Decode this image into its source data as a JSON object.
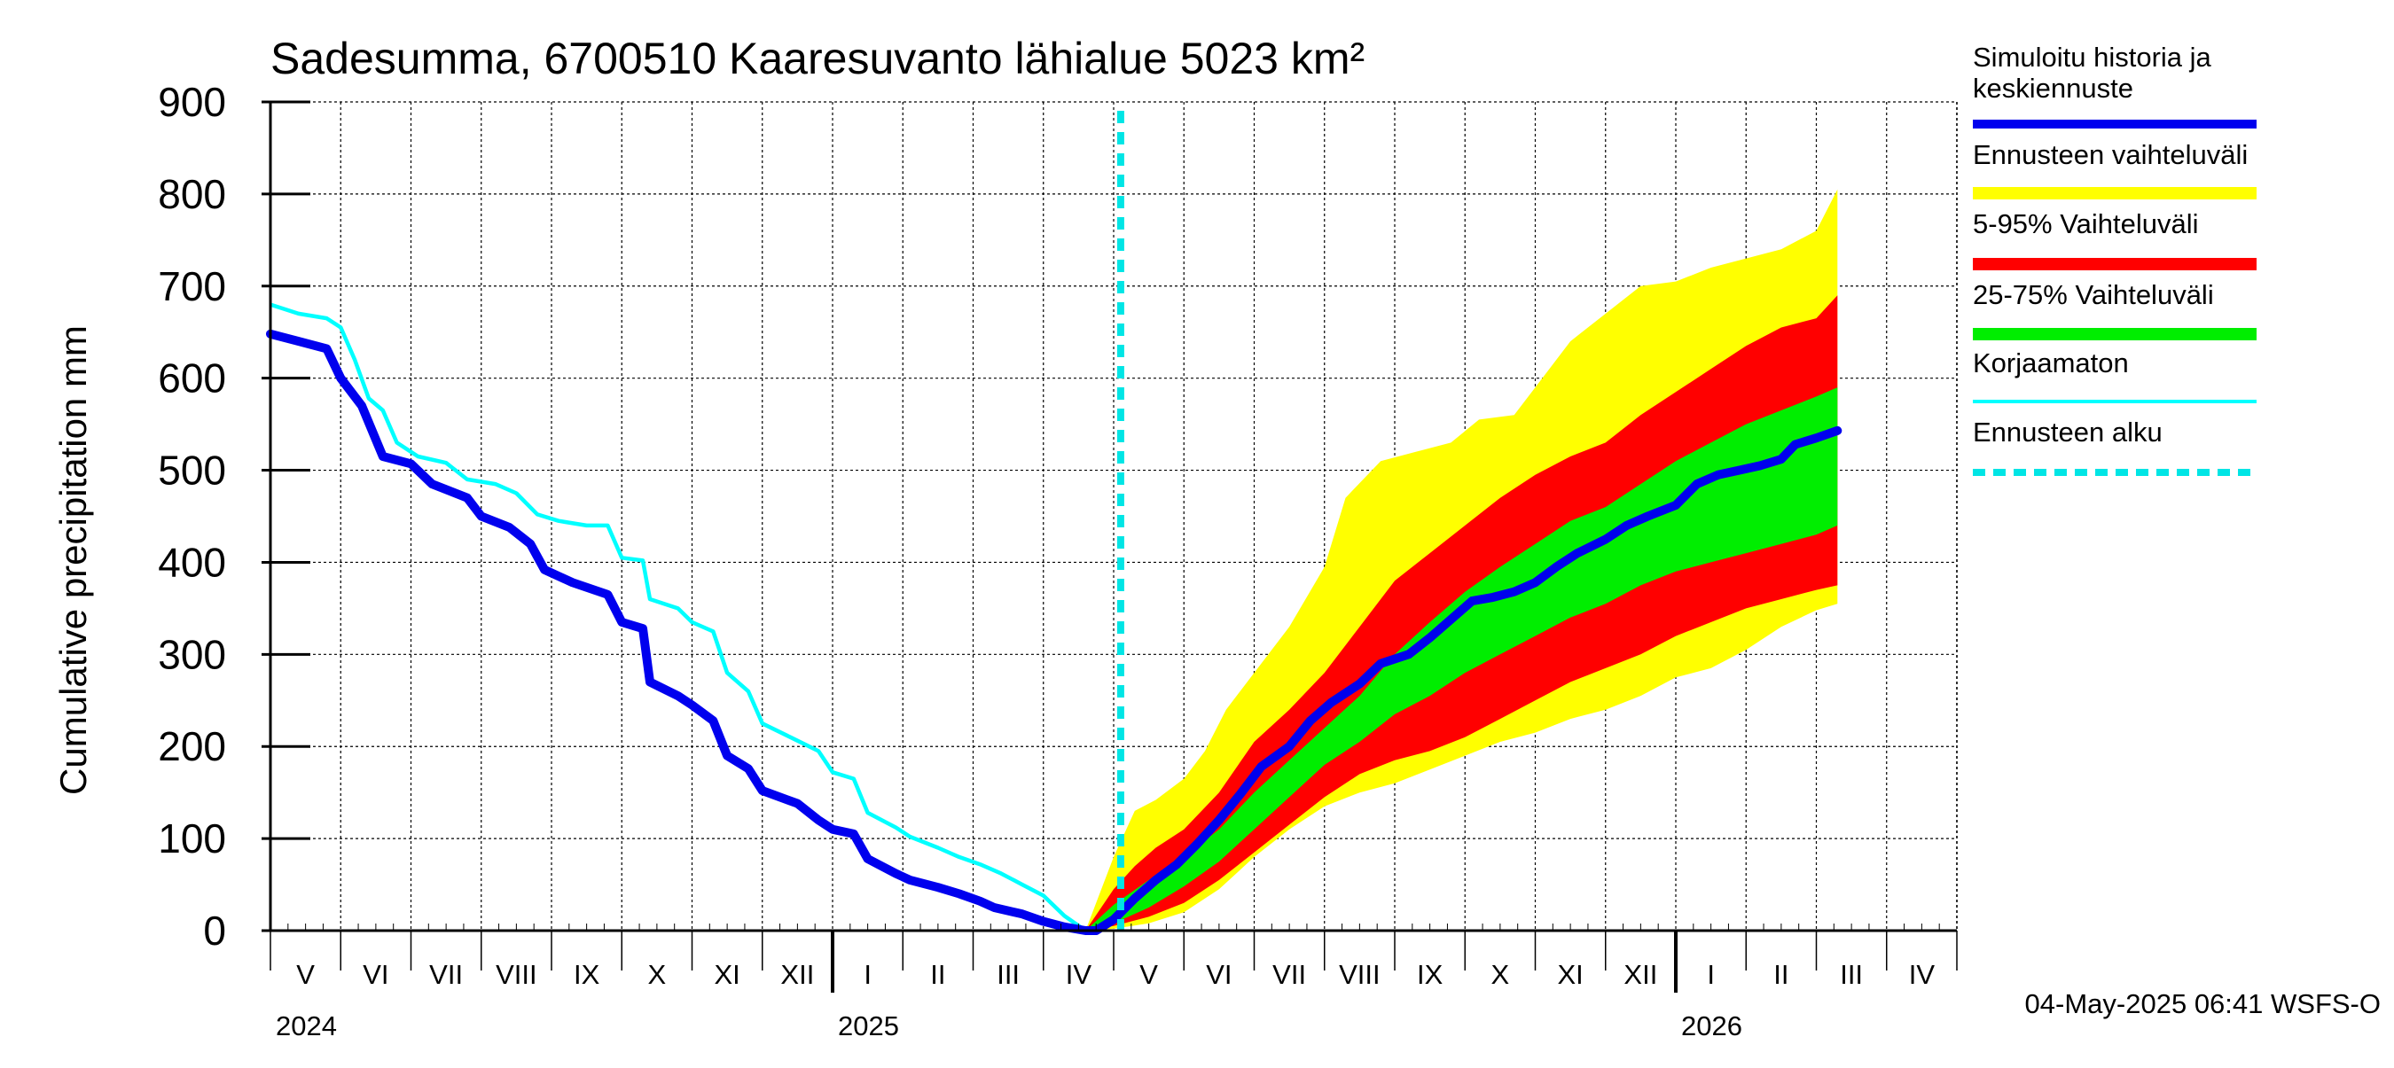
{
  "chart_data": {
    "type": "area",
    "title": "Sadesumma, 6700510 Kaaresuvanto lähialue 5023 km²",
    "ylabel": "Cumulative precipitation   mm",
    "xlabel": "",
    "ylim": [
      0,
      900
    ],
    "yticks": [
      "0",
      "100",
      "200",
      "300",
      "400",
      "500",
      "600",
      "700",
      "800",
      "900"
    ],
    "month_labels": [
      "V",
      "VI",
      "VII",
      "VIII",
      "IX",
      "X",
      "XI",
      "XII",
      "I",
      "II",
      "III",
      "IV",
      "V",
      "VI",
      "VII",
      "VIII",
      "IX",
      "X",
      "XI",
      "XII",
      "I",
      "II",
      "III",
      "IV"
    ],
    "year_labels": [
      "2024",
      "2025",
      "2026"
    ],
    "forecast_start": "2025-05-04",
    "footer": "04-May-2025 06:41 WSFS-O",
    "legend": [
      {
        "label": "Simuloitu historia ja keskiennuste",
        "line1": "Simuloitu historia ja",
        "line2": "keskiennuste",
        "color": "#0000ee",
        "style": "thick"
      },
      {
        "label": "Ennusteen vaihteluväli",
        "color": "#ffff00",
        "style": "band"
      },
      {
        "label": "5-95% Vaihteluväli",
        "color": "#ff0000",
        "style": "band"
      },
      {
        "label": "25-75% Vaihteluväli",
        "color": "#00ee00",
        "style": "band"
      },
      {
        "label": "Korjaamaton",
        "color": "#00ffff",
        "style": "thin"
      },
      {
        "label": "Ennusteen alku",
        "color": "#00e5e5",
        "style": "dashed"
      }
    ],
    "series": [
      {
        "name": "Simuloitu historia ja keskiennuste",
        "points": [
          [
            0,
            648
          ],
          [
            0.4,
            640
          ],
          [
            0.8,
            632
          ],
          [
            1.0,
            600
          ],
          [
            1.3,
            570
          ],
          [
            1.6,
            515
          ],
          [
            2.0,
            507
          ],
          [
            2.3,
            485
          ],
          [
            2.8,
            470
          ],
          [
            3.0,
            450
          ],
          [
            3.4,
            438
          ],
          [
            3.7,
            420
          ],
          [
            3.9,
            392
          ],
          [
            4.3,
            378
          ],
          [
            4.8,
            365
          ],
          [
            5.0,
            335
          ],
          [
            5.3,
            328
          ],
          [
            5.4,
            270
          ],
          [
            5.8,
            255
          ],
          [
            6.0,
            245
          ],
          [
            6.3,
            228
          ],
          [
            6.5,
            190
          ],
          [
            6.8,
            176
          ],
          [
            7.0,
            152
          ],
          [
            7.5,
            138
          ],
          [
            7.8,
            120
          ],
          [
            8.0,
            110
          ],
          [
            8.3,
            105
          ],
          [
            8.5,
            78
          ],
          [
            8.9,
            62
          ],
          [
            9.1,
            55
          ],
          [
            9.5,
            47
          ],
          [
            9.8,
            40
          ],
          [
            10.1,
            32
          ],
          [
            10.3,
            25
          ],
          [
            10.7,
            18
          ],
          [
            11.0,
            10
          ],
          [
            11.3,
            4
          ],
          [
            11.6,
            0
          ],
          [
            11.75,
            0
          ],
          [
            12.0,
            12
          ],
          [
            12.3,
            35
          ],
          [
            12.6,
            55
          ],
          [
            12.9,
            72
          ],
          [
            13.2,
            95
          ],
          [
            13.5,
            120
          ],
          [
            13.8,
            148
          ],
          [
            14.1,
            178
          ],
          [
            14.5,
            200
          ],
          [
            14.8,
            228
          ],
          [
            15.1,
            248
          ],
          [
            15.5,
            268
          ],
          [
            15.8,
            290
          ],
          [
            16.2,
            300
          ],
          [
            16.5,
            318
          ],
          [
            16.8,
            338
          ],
          [
            17.1,
            358
          ],
          [
            17.4,
            362
          ],
          [
            17.7,
            368
          ],
          [
            18.0,
            378
          ],
          [
            18.3,
            395
          ],
          [
            18.6,
            410
          ],
          [
            19.0,
            425
          ],
          [
            19.3,
            440
          ],
          [
            19.6,
            450
          ],
          [
            20.0,
            462
          ],
          [
            20.3,
            485
          ],
          [
            20.6,
            495
          ],
          [
            20.9,
            500
          ],
          [
            21.2,
            505
          ],
          [
            21.5,
            512
          ],
          [
            21.7,
            528
          ],
          [
            22.0,
            535
          ],
          [
            22.3,
            543
          ]
        ]
      },
      {
        "name": "Korjaamaton",
        "points": [
          [
            0,
            680
          ],
          [
            0.4,
            670
          ],
          [
            0.8,
            665
          ],
          [
            1.0,
            655
          ],
          [
            1.2,
            620
          ],
          [
            1.4,
            578
          ],
          [
            1.6,
            565
          ],
          [
            1.8,
            530
          ],
          [
            2.1,
            515
          ],
          [
            2.5,
            508
          ],
          [
            2.8,
            490
          ],
          [
            3.2,
            485
          ],
          [
            3.5,
            475
          ],
          [
            3.8,
            452
          ],
          [
            4.1,
            445
          ],
          [
            4.5,
            440
          ],
          [
            4.8,
            440
          ],
          [
            5.0,
            405
          ],
          [
            5.3,
            402
          ],
          [
            5.4,
            360
          ],
          [
            5.8,
            350
          ],
          [
            6.0,
            335
          ],
          [
            6.3,
            325
          ],
          [
            6.5,
            280
          ],
          [
            6.8,
            260
          ],
          [
            7.0,
            225
          ],
          [
            7.4,
            210
          ],
          [
            7.8,
            195
          ],
          [
            8.0,
            172
          ],
          [
            8.3,
            165
          ],
          [
            8.5,
            128
          ],
          [
            8.9,
            112
          ],
          [
            9.1,
            102
          ],
          [
            9.5,
            90
          ],
          [
            9.8,
            80
          ],
          [
            10.1,
            72
          ],
          [
            10.4,
            62
          ],
          [
            10.7,
            50
          ],
          [
            11.0,
            38
          ],
          [
            11.3,
            16
          ],
          [
            11.6,
            0
          ]
        ]
      }
    ],
    "bands": [
      {
        "name": "Ennusteen vaihteluväli",
        "upper": [
          [
            11.6,
            0
          ],
          [
            12.0,
            80
          ],
          [
            12.3,
            130
          ],
          [
            12.6,
            142
          ],
          [
            13.0,
            165
          ],
          [
            13.3,
            195
          ],
          [
            13.6,
            240
          ],
          [
            14.0,
            280
          ],
          [
            14.5,
            330
          ],
          [
            15.0,
            395
          ],
          [
            15.3,
            470
          ],
          [
            15.8,
            510
          ],
          [
            16.3,
            520
          ],
          [
            16.8,
            530
          ],
          [
            17.2,
            555
          ],
          [
            17.7,
            560
          ],
          [
            18.1,
            600
          ],
          [
            18.5,
            640
          ],
          [
            19.0,
            670
          ],
          [
            19.5,
            700
          ],
          [
            20.0,
            705
          ],
          [
            20.5,
            720
          ],
          [
            21.0,
            730
          ],
          [
            21.5,
            740
          ],
          [
            22.0,
            760
          ],
          [
            22.3,
            805
          ]
        ],
        "lower": [
          [
            11.6,
            0
          ],
          [
            12.0,
            2
          ],
          [
            12.5,
            8
          ],
          [
            13.0,
            20
          ],
          [
            13.5,
            45
          ],
          [
            14.0,
            80
          ],
          [
            14.5,
            110
          ],
          [
            15.0,
            135
          ],
          [
            15.5,
            150
          ],
          [
            16.0,
            160
          ],
          [
            16.5,
            175
          ],
          [
            17.0,
            190
          ],
          [
            17.5,
            205
          ],
          [
            18.0,
            215
          ],
          [
            18.5,
            230
          ],
          [
            19.0,
            240
          ],
          [
            19.5,
            255
          ],
          [
            20.0,
            275
          ],
          [
            20.5,
            285
          ],
          [
            21.0,
            305
          ],
          [
            21.5,
            330
          ],
          [
            22.0,
            348
          ],
          [
            22.3,
            355
          ]
        ]
      },
      {
        "name": "5-95% Vaihteluväli",
        "upper": [
          [
            11.6,
            0
          ],
          [
            12.0,
            45
          ],
          [
            12.3,
            70
          ],
          [
            12.6,
            90
          ],
          [
            13.0,
            110
          ],
          [
            13.5,
            150
          ],
          [
            14.0,
            205
          ],
          [
            14.5,
            240
          ],
          [
            15.0,
            280
          ],
          [
            15.5,
            330
          ],
          [
            16.0,
            380
          ],
          [
            16.5,
            410
          ],
          [
            17.0,
            440
          ],
          [
            17.5,
            470
          ],
          [
            18.0,
            495
          ],
          [
            18.5,
            515
          ],
          [
            19.0,
            530
          ],
          [
            19.5,
            560
          ],
          [
            20.0,
            585
          ],
          [
            20.5,
            610
          ],
          [
            21.0,
            635
          ],
          [
            21.5,
            655
          ],
          [
            22.0,
            665
          ],
          [
            22.3,
            690
          ]
        ],
        "lower": [
          [
            11.6,
            0
          ],
          [
            12.0,
            5
          ],
          [
            12.5,
            15
          ],
          [
            13.0,
            30
          ],
          [
            13.5,
            55
          ],
          [
            14.0,
            85
          ],
          [
            14.5,
            115
          ],
          [
            15.0,
            145
          ],
          [
            15.5,
            170
          ],
          [
            16.0,
            185
          ],
          [
            16.5,
            195
          ],
          [
            17.0,
            210
          ],
          [
            17.5,
            230
          ],
          [
            18.0,
            250
          ],
          [
            18.5,
            270
          ],
          [
            19.0,
            285
          ],
          [
            19.5,
            300
          ],
          [
            20.0,
            320
          ],
          [
            20.5,
            335
          ],
          [
            21.0,
            350
          ],
          [
            21.5,
            360
          ],
          [
            22.0,
            370
          ],
          [
            22.3,
            375
          ]
        ]
      },
      {
        "name": "25-75% Vaihteluväli",
        "upper": [
          [
            11.6,
            0
          ],
          [
            12.0,
            28
          ],
          [
            12.5,
            55
          ],
          [
            13.0,
            80
          ],
          [
            13.5,
            110
          ],
          [
            14.0,
            150
          ],
          [
            14.5,
            185
          ],
          [
            15.0,
            220
          ],
          [
            15.5,
            255
          ],
          [
            16.0,
            300
          ],
          [
            16.5,
            335
          ],
          [
            17.0,
            368
          ],
          [
            17.5,
            395
          ],
          [
            18.0,
            420
          ],
          [
            18.5,
            445
          ],
          [
            19.0,
            460
          ],
          [
            19.5,
            485
          ],
          [
            20.0,
            510
          ],
          [
            20.5,
            530
          ],
          [
            21.0,
            550
          ],
          [
            21.5,
            565
          ],
          [
            22.0,
            580
          ],
          [
            22.3,
            590
          ]
        ],
        "lower": [
          [
            11.6,
            0
          ],
          [
            12.0,
            8
          ],
          [
            12.5,
            25
          ],
          [
            13.0,
            48
          ],
          [
            13.5,
            75
          ],
          [
            14.0,
            110
          ],
          [
            14.5,
            145
          ],
          [
            15.0,
            180
          ],
          [
            15.5,
            205
          ],
          [
            16.0,
            235
          ],
          [
            16.5,
            255
          ],
          [
            17.0,
            280
          ],
          [
            17.5,
            300
          ],
          [
            18.0,
            320
          ],
          [
            18.5,
            340
          ],
          [
            19.0,
            355
          ],
          [
            19.5,
            375
          ],
          [
            20.0,
            390
          ],
          [
            20.5,
            400
          ],
          [
            21.0,
            410
          ],
          [
            21.5,
            420
          ],
          [
            22.0,
            430
          ],
          [
            22.3,
            440
          ]
        ]
      }
    ]
  }
}
